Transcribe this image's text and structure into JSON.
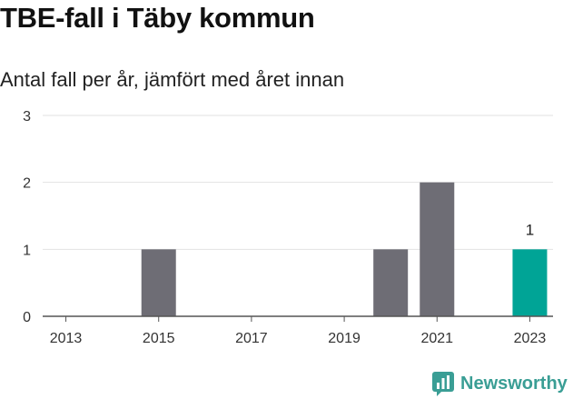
{
  "header": {
    "title": "TBE-fall i Täby kommun",
    "subtitle": "Antal fall per år, jämfört med året innan"
  },
  "brand": {
    "name": "Newsworthy",
    "icon": "newsworthy-logo-icon",
    "color": "#3a9e95"
  },
  "chart_data": {
    "type": "bar",
    "title": "TBE-fall i Täby kommun",
    "subtitle": "Antal fall per år, jämfört med året innan",
    "xlabel": "",
    "ylabel": "",
    "categories": [
      "2013",
      "2014",
      "2015",
      "2016",
      "2017",
      "2018",
      "2019",
      "2020",
      "2021",
      "2022",
      "2023"
    ],
    "values": [
      0,
      0,
      1,
      0,
      0,
      0,
      0,
      1,
      2,
      0,
      1
    ],
    "x_tick_labels": [
      "2013",
      "2015",
      "2017",
      "2019",
      "2021",
      "2023"
    ],
    "y_ticks": [
      0,
      1,
      2,
      3
    ],
    "ylim": [
      0,
      3
    ],
    "grid": true,
    "highlight_category": "2023",
    "data_labels": [
      {
        "category": "2023",
        "text": "1"
      }
    ],
    "colors": {
      "bar": "#6e6d75",
      "highlight": "#00a496",
      "grid": "#e2e2e2",
      "axis": "#555555"
    }
  }
}
